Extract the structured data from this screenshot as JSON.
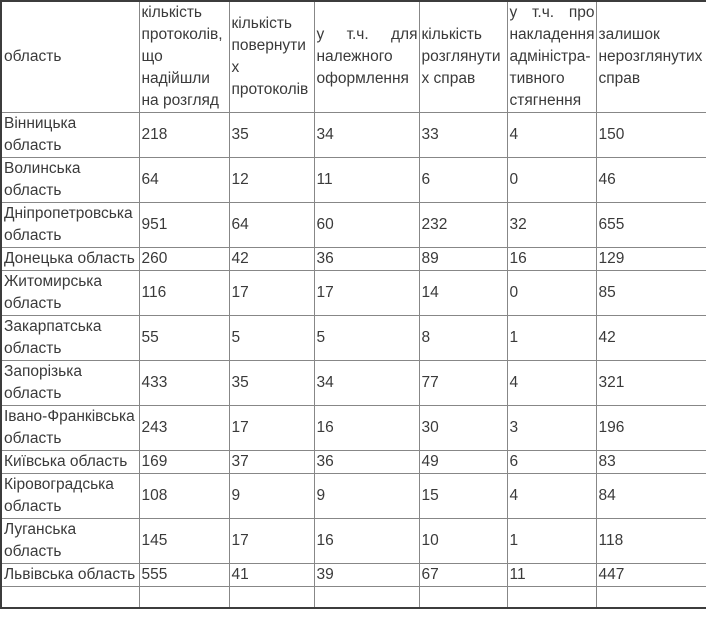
{
  "table": {
    "columns": [
      "область",
      "кількість протоколів, що надійшли на розгляд",
      "кількість повернутих протоколів",
      "у т.ч. для належного оформлення",
      "кількість розглянутих справ",
      "у т.ч. про накладення адміністра-тивного стягнення",
      "залишок нерозглянутих справ"
    ],
    "rows": [
      [
        "Вінницька область",
        "218",
        "35",
        "34",
        "33",
        "4",
        "150"
      ],
      [
        "Волинська область",
        "64",
        "12",
        "11",
        "6",
        "0",
        "46"
      ],
      [
        "Дніпропетровська область",
        "951",
        "64",
        "60",
        "232",
        "32",
        "655"
      ],
      [
        "Донецька область",
        "260",
        "42",
        "36",
        "89",
        "16",
        "129"
      ],
      [
        "Житомирська область",
        "116",
        "17",
        "17",
        "14",
        "0",
        "85"
      ],
      [
        "Закарпатська область",
        "55",
        "5",
        "5",
        "8",
        "1",
        "42"
      ],
      [
        "Запорізька область",
        "433",
        "35",
        "34",
        "77",
        "4",
        "321"
      ],
      [
        "Івано-Франківська область",
        "243",
        "17",
        "16",
        "30",
        "3",
        "196"
      ],
      [
        "Київська область",
        "169",
        "37",
        "36",
        "49",
        "6",
        "83"
      ],
      [
        "Кіровоградська область",
        "108",
        "9",
        "9",
        "15",
        "4",
        "84"
      ],
      [
        "Луганська область",
        "145",
        "17",
        "16",
        "10",
        "1",
        "118"
      ],
      [
        "Львівська область",
        "555",
        "41",
        "39",
        "67",
        "11",
        "447"
      ]
    ]
  }
}
